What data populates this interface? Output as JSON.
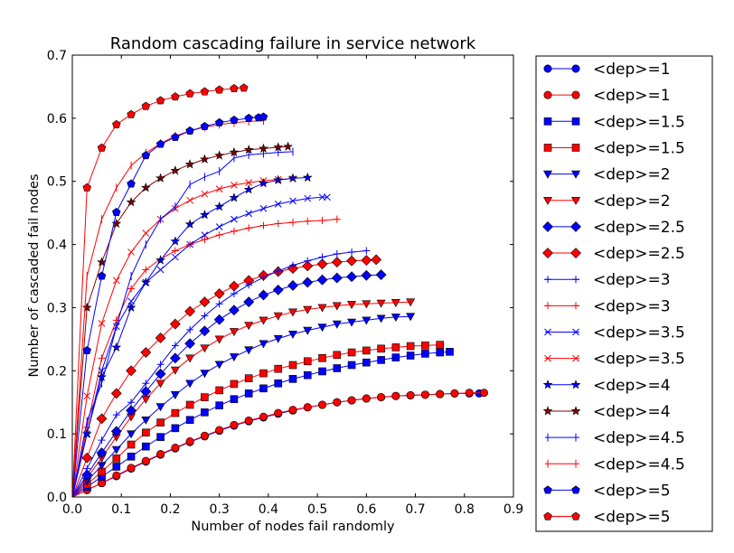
{
  "chart_data": {
    "type": "line",
    "title": "Random cascading failure in service network",
    "xlabel": "Number of nodes fail randomly",
    "ylabel": "Number of cascaded fail nodes",
    "xlim": [
      0,
      0.9
    ],
    "ylim": [
      0,
      0.7
    ],
    "x_ticks": [
      "0.0",
      "0.1",
      "0.2",
      "0.3",
      "0.4",
      "0.5",
      "0.6",
      "0.7",
      "0.8",
      "0.9"
    ],
    "y_ticks": [
      "0.0",
      "0.1",
      "0.2",
      "0.3",
      "0.4",
      "0.5",
      "0.6",
      "0.7"
    ],
    "grid": false,
    "legend_position": "outside-right",
    "series": [
      {
        "name": "<dep>=1",
        "color": "#0000ff",
        "marker": "circle",
        "x": [
          0,
          0.03,
          0.06,
          0.09,
          0.12,
          0.15,
          0.18,
          0.21,
          0.24,
          0.27,
          0.3,
          0.33,
          0.36,
          0.39,
          0.42,
          0.45,
          0.48,
          0.51,
          0.54,
          0.57,
          0.6,
          0.63,
          0.66,
          0.69,
          0.72,
          0.75,
          0.78,
          0.81,
          0.83
        ],
        "y": [
          0,
          0.011,
          0.022,
          0.033,
          0.045,
          0.056,
          0.067,
          0.077,
          0.087,
          0.096,
          0.105,
          0.113,
          0.12,
          0.126,
          0.132,
          0.137,
          0.142,
          0.146,
          0.15,
          0.153,
          0.156,
          0.158,
          0.16,
          0.161,
          0.162,
          0.163,
          0.164,
          0.164,
          0.164
        ]
      },
      {
        "name": "<dep>=1",
        "color": "#ff0000",
        "marker": "circle",
        "x": [
          0,
          0.03,
          0.06,
          0.09,
          0.12,
          0.15,
          0.18,
          0.21,
          0.24,
          0.27,
          0.3,
          0.33,
          0.36,
          0.39,
          0.42,
          0.45,
          0.48,
          0.51,
          0.54,
          0.57,
          0.6,
          0.63,
          0.66,
          0.69,
          0.72,
          0.75,
          0.78,
          0.81,
          0.84
        ],
        "y": [
          0,
          0.011,
          0.022,
          0.034,
          0.046,
          0.057,
          0.068,
          0.078,
          0.088,
          0.097,
          0.106,
          0.114,
          0.121,
          0.127,
          0.133,
          0.138,
          0.142,
          0.146,
          0.15,
          0.153,
          0.156,
          0.158,
          0.16,
          0.161,
          0.162,
          0.163,
          0.164,
          0.165,
          0.165
        ]
      },
      {
        "name": "<dep>=1.5",
        "color": "#0000ff",
        "marker": "square",
        "x": [
          0,
          0.03,
          0.06,
          0.09,
          0.12,
          0.15,
          0.18,
          0.21,
          0.24,
          0.27,
          0.3,
          0.33,
          0.36,
          0.39,
          0.42,
          0.45,
          0.48,
          0.51,
          0.54,
          0.57,
          0.6,
          0.63,
          0.66,
          0.69,
          0.72,
          0.75,
          0.77
        ],
        "y": [
          0,
          0.016,
          0.032,
          0.048,
          0.064,
          0.08,
          0.095,
          0.109,
          0.122,
          0.134,
          0.145,
          0.155,
          0.164,
          0.172,
          0.18,
          0.187,
          0.193,
          0.199,
          0.204,
          0.209,
          0.213,
          0.217,
          0.221,
          0.224,
          0.227,
          0.229,
          0.23
        ]
      },
      {
        "name": "<dep>=1.5",
        "color": "#ff0000",
        "marker": "square",
        "x": [
          0,
          0.03,
          0.06,
          0.09,
          0.12,
          0.15,
          0.18,
          0.21,
          0.24,
          0.27,
          0.3,
          0.33,
          0.36,
          0.39,
          0.42,
          0.45,
          0.48,
          0.51,
          0.54,
          0.57,
          0.6,
          0.63,
          0.66,
          0.69,
          0.72,
          0.75
        ],
        "y": [
          0,
          0.02,
          0.04,
          0.061,
          0.083,
          0.102,
          0.118,
          0.133,
          0.146,
          0.158,
          0.169,
          0.179,
          0.188,
          0.196,
          0.203,
          0.209,
          0.215,
          0.22,
          0.225,
          0.229,
          0.232,
          0.235,
          0.237,
          0.239,
          0.24,
          0.241
        ]
      },
      {
        "name": "<dep>=2",
        "color": "#0000ff",
        "marker": "triangle-down",
        "x": [
          0,
          0.03,
          0.06,
          0.09,
          0.12,
          0.15,
          0.18,
          0.21,
          0.24,
          0.27,
          0.3,
          0.33,
          0.36,
          0.39,
          0.42,
          0.45,
          0.48,
          0.51,
          0.54,
          0.57,
          0.6,
          0.63,
          0.66,
          0.69
        ],
        "y": [
          0,
          0.025,
          0.05,
          0.075,
          0.1,
          0.122,
          0.143,
          0.162,
          0.18,
          0.196,
          0.21,
          0.222,
          0.233,
          0.243,
          0.251,
          0.258,
          0.264,
          0.269,
          0.274,
          0.277,
          0.28,
          0.283,
          0.285,
          0.286
        ]
      },
      {
        "name": "<dep>=2",
        "color": "#ff0000",
        "marker": "triangle-down",
        "x": [
          0,
          0.03,
          0.06,
          0.09,
          0.12,
          0.15,
          0.18,
          0.21,
          0.24,
          0.27,
          0.3,
          0.33,
          0.36,
          0.39,
          0.42,
          0.45,
          0.48,
          0.51,
          0.54,
          0.57,
          0.6,
          0.63,
          0.66,
          0.69
        ],
        "y": [
          0,
          0.03,
          0.062,
          0.095,
          0.127,
          0.155,
          0.18,
          0.201,
          0.22,
          0.236,
          0.25,
          0.262,
          0.272,
          0.28,
          0.287,
          0.293,
          0.297,
          0.3,
          0.303,
          0.305,
          0.306,
          0.307,
          0.308,
          0.309
        ]
      },
      {
        "name": "<dep>=2.5",
        "color": "#0000ff",
        "marker": "diamond",
        "x": [
          0,
          0.03,
          0.06,
          0.09,
          0.12,
          0.15,
          0.18,
          0.21,
          0.24,
          0.27,
          0.3,
          0.33,
          0.36,
          0.39,
          0.42,
          0.45,
          0.48,
          0.51,
          0.54,
          0.57,
          0.6,
          0.63
        ],
        "y": [
          0,
          0.035,
          0.07,
          0.104,
          0.137,
          0.167,
          0.195,
          0.22,
          0.243,
          0.263,
          0.281,
          0.296,
          0.309,
          0.32,
          0.328,
          0.335,
          0.34,
          0.344,
          0.347,
          0.349,
          0.351,
          0.352
        ]
      },
      {
        "name": "<dep>=2.5",
        "color": "#ff0000",
        "marker": "diamond",
        "x": [
          0,
          0.03,
          0.06,
          0.09,
          0.12,
          0.15,
          0.18,
          0.21,
          0.24,
          0.27,
          0.3,
          0.33,
          0.36,
          0.39,
          0.42,
          0.45,
          0.48,
          0.51,
          0.54,
          0.57,
          0.6,
          0.62
        ],
        "y": [
          0,
          0.062,
          0.124,
          0.164,
          0.2,
          0.229,
          0.252,
          0.274,
          0.294,
          0.309,
          0.322,
          0.334,
          0.343,
          0.351,
          0.357,
          0.362,
          0.366,
          0.369,
          0.372,
          0.374,
          0.375,
          0.376
        ]
      },
      {
        "name": "<dep>=3",
        "color": "#0000ff",
        "marker": "plus",
        "x": [
          0,
          0.03,
          0.06,
          0.09,
          0.12,
          0.15,
          0.18,
          0.21,
          0.24,
          0.27,
          0.3,
          0.33,
          0.36,
          0.39,
          0.42,
          0.45,
          0.48,
          0.51,
          0.54,
          0.57,
          0.6
        ],
        "y": [
          0,
          0.045,
          0.09,
          0.13,
          0.15,
          0.18,
          0.21,
          0.24,
          0.265,
          0.287,
          0.306,
          0.322,
          0.336,
          0.348,
          0.358,
          0.367,
          0.374,
          0.38,
          0.385,
          0.388,
          0.39
        ]
      },
      {
        "name": "<dep>=3",
        "color": "#ff0000",
        "marker": "plus",
        "x": [
          0,
          0.03,
          0.06,
          0.09,
          0.12,
          0.15,
          0.18,
          0.21,
          0.24,
          0.27,
          0.3,
          0.33,
          0.36,
          0.39,
          0.42,
          0.45,
          0.48,
          0.51,
          0.54
        ],
        "y": [
          0,
          0.11,
          0.22,
          0.28,
          0.33,
          0.36,
          0.377,
          0.39,
          0.4,
          0.408,
          0.415,
          0.421,
          0.426,
          0.43,
          0.433,
          0.435,
          0.437,
          0.438,
          0.44
        ]
      },
      {
        "name": "<dep>=3.5",
        "color": "#0000ff",
        "marker": "x",
        "x": [
          0,
          0.03,
          0.06,
          0.09,
          0.12,
          0.15,
          0.18,
          0.21,
          0.24,
          0.27,
          0.3,
          0.33,
          0.36,
          0.39,
          0.42,
          0.45,
          0.48,
          0.51,
          0.52
        ],
        "y": [
          0,
          0.1,
          0.2,
          0.27,
          0.31,
          0.34,
          0.36,
          0.38,
          0.4,
          0.415,
          0.428,
          0.44,
          0.449,
          0.457,
          0.464,
          0.469,
          0.473,
          0.475,
          0.475
        ]
      },
      {
        "name": "<dep>=3.5",
        "color": "#ff0000",
        "marker": "x",
        "x": [
          0,
          0.03,
          0.06,
          0.09,
          0.12,
          0.15,
          0.18,
          0.21,
          0.24,
          0.27,
          0.3,
          0.33,
          0.36,
          0.39,
          0.42,
          0.45
        ],
        "y": [
          0,
          0.16,
          0.275,
          0.343,
          0.388,
          0.418,
          0.44,
          0.457,
          0.47,
          0.48,
          0.488,
          0.494,
          0.498,
          0.501,
          0.503,
          0.504
        ]
      },
      {
        "name": "<dep>=4",
        "color": "#0000ff",
        "marker": "star",
        "x": [
          0,
          0.03,
          0.06,
          0.09,
          0.12,
          0.15,
          0.18,
          0.21,
          0.24,
          0.27,
          0.3,
          0.33,
          0.36,
          0.39,
          0.42,
          0.45,
          0.48
        ],
        "y": [
          0,
          0.1,
          0.19,
          0.237,
          0.3,
          0.34,
          0.375,
          0.405,
          0.432,
          0.447,
          0.46,
          0.474,
          0.487,
          0.497,
          0.502,
          0.505,
          0.506
        ]
      },
      {
        "name": "<dep>=4",
        "color": "#800000",
        "marker": "star",
        "x": [
          0,
          0.03,
          0.06,
          0.09,
          0.12,
          0.15,
          0.18,
          0.21,
          0.24,
          0.27,
          0.3,
          0.33,
          0.36,
          0.39,
          0.42,
          0.44
        ],
        "y": [
          0,
          0.3,
          0.372,
          0.433,
          0.467,
          0.49,
          0.505,
          0.517,
          0.527,
          0.535,
          0.541,
          0.546,
          0.55,
          0.552,
          0.554,
          0.555
        ]
      },
      {
        "name": "<dep>=4.5",
        "color": "#0000ff",
        "marker": "vline",
        "x": [
          0,
          0.03,
          0.06,
          0.09,
          0.12,
          0.15,
          0.18,
          0.21,
          0.24,
          0.27,
          0.3,
          0.33,
          0.36,
          0.39,
          0.42,
          0.45
        ],
        "y": [
          0,
          0.12,
          0.18,
          0.27,
          0.35,
          0.4,
          0.44,
          0.46,
          0.495,
          0.507,
          0.516,
          0.537,
          0.542,
          0.544,
          0.546,
          0.547
        ]
      },
      {
        "name": "<dep>=4.5",
        "color": "#ff0000",
        "marker": "vline",
        "x": [
          0,
          0.03,
          0.06,
          0.09,
          0.12,
          0.15,
          0.18,
          0.21,
          0.24,
          0.27,
          0.3,
          0.33,
          0.36,
          0.39
        ],
        "y": [
          0,
          0.35,
          0.44,
          0.49,
          0.525,
          0.545,
          0.56,
          0.572,
          0.58,
          0.586,
          0.59,
          0.593,
          0.595,
          0.596
        ]
      },
      {
        "name": "<dep>=5",
        "color": "#0000ff",
        "marker": "pentagon",
        "x": [
          0,
          0.03,
          0.06,
          0.09,
          0.12,
          0.15,
          0.18,
          0.21,
          0.24,
          0.27,
          0.3,
          0.33,
          0.36,
          0.38,
          0.39
        ],
        "y": [
          0,
          0.232,
          0.35,
          0.451,
          0.496,
          0.541,
          0.559,
          0.57,
          0.58,
          0.587,
          0.593,
          0.597,
          0.6,
          0.601,
          0.602
        ]
      },
      {
        "name": "<dep>=5",
        "color": "#ff0000",
        "marker": "pentagon",
        "x": [
          0,
          0.03,
          0.06,
          0.09,
          0.12,
          0.15,
          0.18,
          0.21,
          0.24,
          0.27,
          0.3,
          0.33,
          0.35
        ],
        "y": [
          0,
          0.49,
          0.553,
          0.59,
          0.606,
          0.619,
          0.628,
          0.634,
          0.639,
          0.642,
          0.645,
          0.647,
          0.648
        ]
      }
    ]
  }
}
